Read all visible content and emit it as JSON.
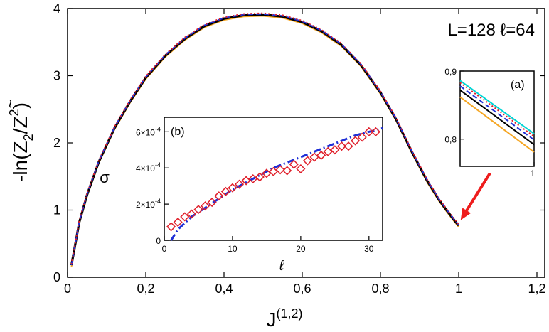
{
  "chart_data": [
    {
      "id": "main",
      "type": "line",
      "annotation": "L=128 ℓ=64",
      "xlabel": "J(1,2)",
      "xlabel_base": "J",
      "xlabel_sup": "(1,2)",
      "ylabel": "-ln(Z̃2/Z2)",
      "ylabel_parts": {
        "open": "-ln(",
        "z1": "Z",
        "tilde": "~",
        "sub": "2",
        "slash": "/Z",
        "sup": "2",
        "close": ")"
      },
      "xlim": [
        0,
        1.22
      ],
      "ylim": [
        0,
        4
      ],
      "xticks": [
        0,
        0.2,
        0.4,
        0.6,
        0.8,
        1,
        1.2
      ],
      "xtick_labels": [
        "0",
        "0,2",
        "0,4",
        "0,6",
        "0,8",
        "1",
        "1,2"
      ],
      "yticks": [
        0,
        1,
        2,
        3,
        4
      ],
      "ytick_labels": [
        "0",
        "1",
        "2",
        "3",
        "4"
      ],
      "series": [
        {
          "color": "#f5a623",
          "style": "solid",
          "x": [
            0.01,
            0.03,
            0.05,
            0.08,
            0.12,
            0.16,
            0.2,
            0.25,
            0.3,
            0.35,
            0.4,
            0.45,
            0.5,
            0.55,
            0.6,
            0.65,
            0.7,
            0.75,
            0.8,
            0.84,
            0.88,
            0.92,
            0.95,
            0.97,
            0.99,
            1.0
          ],
          "y": [
            0.16,
            0.8,
            1.21,
            1.7,
            2.2,
            2.6,
            2.95,
            3.28,
            3.53,
            3.72,
            3.83,
            3.88,
            3.89,
            3.86,
            3.78,
            3.64,
            3.44,
            3.14,
            2.73,
            2.33,
            1.85,
            1.41,
            1.13,
            0.97,
            0.82,
            0.75
          ]
        },
        {
          "color": "#000000",
          "style": "solid",
          "x": [
            0.01,
            0.03,
            0.05,
            0.08,
            0.12,
            0.16,
            0.2,
            0.25,
            0.3,
            0.35,
            0.4,
            0.45,
            0.5,
            0.55,
            0.6,
            0.65,
            0.7,
            0.75,
            0.8,
            0.84,
            0.88,
            0.92,
            0.95,
            0.97,
            0.99,
            1.0
          ],
          "y": [
            0.18,
            0.82,
            1.23,
            1.72,
            2.22,
            2.62,
            2.97,
            3.3,
            3.55,
            3.74,
            3.85,
            3.9,
            3.91,
            3.88,
            3.8,
            3.66,
            3.46,
            3.16,
            2.75,
            2.35,
            1.87,
            1.43,
            1.15,
            0.99,
            0.84,
            0.77
          ]
        },
        {
          "color": "#1f2fd6",
          "style": "dashed",
          "x": [
            0.01,
            0.03,
            0.05,
            0.08,
            0.12,
            0.16,
            0.2,
            0.25,
            0.3,
            0.35,
            0.4,
            0.45,
            0.5,
            0.55,
            0.6,
            0.65,
            0.7,
            0.75,
            0.8,
            0.84,
            0.88,
            0.92,
            0.95,
            0.97,
            0.99,
            1.0
          ],
          "y": [
            0.18,
            0.83,
            1.24,
            1.73,
            2.23,
            2.63,
            2.98,
            3.31,
            3.56,
            3.75,
            3.86,
            3.91,
            3.92,
            3.89,
            3.81,
            3.67,
            3.47,
            3.17,
            2.76,
            2.36,
            1.88,
            1.44,
            1.16,
            1.0,
            0.85,
            0.78
          ]
        },
        {
          "color": "#e0202b",
          "style": "dotted",
          "x": [
            0.01,
            0.03,
            0.05,
            0.08,
            0.12,
            0.16,
            0.2,
            0.25,
            0.3,
            0.35,
            0.4,
            0.45,
            0.5,
            0.55,
            0.6,
            0.65,
            0.7,
            0.75,
            0.8,
            0.84,
            0.88,
            0.92,
            0.95,
            0.97,
            0.99,
            1.0
          ],
          "y": [
            0.19,
            0.84,
            1.25,
            1.74,
            2.24,
            2.64,
            2.99,
            3.32,
            3.57,
            3.76,
            3.87,
            3.92,
            3.93,
            3.9,
            3.82,
            3.68,
            3.48,
            3.18,
            2.77,
            2.37,
            1.89,
            1.45,
            1.17,
            1.01,
            0.86,
            0.79
          ]
        }
      ],
      "arrow": {
        "color": "#ee1c1c",
        "from": [
          1.08,
          1.55
        ],
        "to": [
          1.005,
          0.85
        ]
      }
    },
    {
      "id": "inset-a",
      "type": "line",
      "label": "(a)",
      "xlim": [
        0.9,
        1.0
      ],
      "ylim": [
        0.76,
        0.9
      ],
      "yticks": [
        0.8,
        0.9
      ],
      "ytick_labels": [
        "0,8",
        "0,9"
      ],
      "xticks": [
        1.0
      ],
      "xtick_labels": [
        "1"
      ],
      "series": [
        {
          "color": "#00d5d5",
          "style": "solid",
          "x": [
            0.9,
            1.0
          ],
          "y": [
            0.886,
            0.808
          ]
        },
        {
          "color": "#e0202b",
          "style": "dotted",
          "x": [
            0.9,
            1.0
          ],
          "y": [
            0.883,
            0.804
          ]
        },
        {
          "color": "#1f2fd6",
          "style": "dashed",
          "x": [
            0.9,
            1.0
          ],
          "y": [
            0.878,
            0.799
          ]
        },
        {
          "color": "#000000",
          "style": "solid",
          "x": [
            0.9,
            1.0
          ],
          "y": [
            0.872,
            0.792
          ]
        },
        {
          "color": "#f5a623",
          "style": "solid",
          "x": [
            0.9,
            1.0
          ],
          "y": [
            0.862,
            0.781
          ]
        }
      ]
    },
    {
      "id": "inset-b",
      "type": "scatter",
      "label": "(b)",
      "xlabel": "ℓ",
      "ylabel": "σ",
      "xlim": [
        0,
        32
      ],
      "ylim": [
        0,
        0.00068
      ],
      "xticks": [
        0,
        10,
        20,
        30
      ],
      "xtick_labels": [
        "0",
        "10",
        "20",
        "30"
      ],
      "yticks": [
        0,
        0.0002,
        0.0004,
        0.0006
      ],
      "ytick_labels": [
        {
          "mant": "0",
          "exp": ""
        },
        {
          "mant": "2×10",
          "exp": "-4"
        },
        {
          "mant": "4×10",
          "exp": "-4"
        },
        {
          "mant": "6×10",
          "exp": "-4"
        }
      ],
      "points": {
        "color": "#e0202b",
        "marker": "diamond",
        "x": [
          1,
          2,
          3,
          4,
          5,
          6,
          7,
          8,
          9,
          10,
          11,
          12,
          13,
          14,
          15,
          16,
          17,
          18,
          19,
          20,
          21,
          22,
          23,
          24,
          25,
          26,
          27,
          28,
          29,
          30,
          31
        ],
        "y": [
          7.5e-05,
          0.0001,
          0.00013,
          0.000145,
          0.00017,
          0.00019,
          0.00021,
          0.000245,
          0.00027,
          0.00029,
          0.00031,
          0.00033,
          0.00034,
          0.00035,
          0.00037,
          0.00038,
          0.00039,
          0.000385,
          0.00042,
          0.000395,
          0.00044,
          0.00046,
          0.00047,
          0.00049,
          0.0005,
          0.00052,
          0.00052,
          0.00055,
          0.00057,
          0.0006,
          0.0006
        ]
      },
      "fit": {
        "color": "#1f2fd6",
        "style": "dash-dot",
        "x": [
          1,
          2,
          4,
          6,
          8,
          10,
          12,
          14,
          16,
          18,
          20,
          22,
          24,
          26,
          28,
          30,
          32
        ],
        "y": [
          0.0,
          6e-05,
          0.00013,
          0.00018,
          0.00023,
          0.00028,
          0.00032,
          0.00036,
          0.0004,
          0.00043,
          0.00046,
          0.00049,
          0.00052,
          0.00055,
          0.00058,
          0.0006,
          0.00062
        ]
      }
    }
  ]
}
